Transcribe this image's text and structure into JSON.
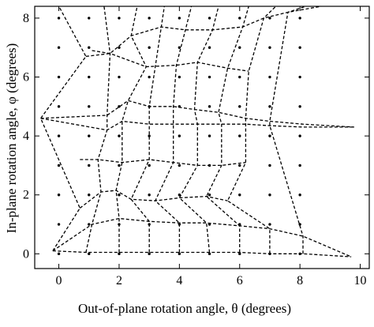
{
  "chart_data": {
    "type": "scatter",
    "xlabel": "Out-of-plane rotation angle, θ (degrees)",
    "ylabel": "In-plane rotation angle, φ (degrees)",
    "xlim": [
      -0.8,
      10.3
    ],
    "ylim": [
      -0.5,
      8.4
    ],
    "x_ticks": [
      0,
      2,
      4,
      6,
      8,
      10
    ],
    "y_ticks": [
      0,
      2,
      4,
      6,
      8
    ],
    "x_tick_labels": [
      "0",
      "2",
      "4",
      "6",
      "8",
      "10"
    ],
    "y_tick_labels": [
      "0",
      "2",
      "4",
      "6",
      "8"
    ],
    "grid": false,
    "series": [
      {
        "kind": "points",
        "x": [
          0,
          1,
          2,
          3,
          4,
          5,
          6,
          7,
          8
        ],
        "y": [
          0,
          1,
          2,
          3,
          4,
          5,
          6,
          7,
          8
        ]
      },
      {
        "kind": "dashed-mesh",
        "rows": [
          [
            [
              -0.2,
              0.1
            ],
            [
              0.9,
              0.05
            ],
            [
              2.0,
              0.05
            ],
            [
              3.0,
              0.05
            ],
            [
              4.0,
              0.05
            ],
            [
              5.0,
              0.05
            ],
            [
              6.0,
              0.05
            ],
            [
              7.0,
              0.0
            ],
            [
              8.1,
              0.0
            ],
            [
              9.7,
              -0.1
            ]
          ],
          [
            [
              -0.2,
              0.1
            ],
            [
              1.1,
              1.0
            ],
            [
              2.0,
              1.2
            ],
            [
              3.0,
              1.1
            ],
            [
              4.0,
              1.05
            ],
            [
              4.9,
              1.05
            ],
            [
              6.0,
              0.95
            ],
            [
              7.0,
              0.85
            ],
            [
              8.1,
              0.6
            ],
            [
              9.7,
              -0.1
            ]
          ],
          [
            [
              0.7,
              1.55
            ],
            [
              1.4,
              2.1
            ],
            [
              1.9,
              2.15
            ],
            [
              2.4,
              1.85
            ],
            [
              3.2,
              1.8
            ],
            [
              4.0,
              1.9
            ],
            [
              4.9,
              1.95
            ],
            [
              5.6,
              1.8
            ]
          ],
          [
            [
              0.7,
              3.2
            ],
            [
              1.3,
              3.2
            ],
            [
              2.1,
              3.1
            ],
            [
              3.0,
              3.2
            ],
            [
              3.8,
              3.1
            ],
            [
              4.6,
              3.0
            ],
            [
              5.4,
              3.0
            ],
            [
              6.2,
              3.1
            ]
          ],
          [
            [
              -0.6,
              4.6
            ],
            [
              1.6,
              4.2
            ],
            [
              2.1,
              4.5
            ],
            [
              3.0,
              4.4
            ],
            [
              3.8,
              4.4
            ],
            [
              4.6,
              4.4
            ],
            [
              5.4,
              4.4
            ],
            [
              6.2,
              4.4
            ],
            [
              7.0,
              4.35
            ],
            [
              8.1,
              4.3
            ],
            [
              9.8,
              4.3
            ]
          ],
          [
            [
              -0.6,
              4.6
            ],
            [
              1.6,
              4.7
            ],
            [
              2.3,
              5.2
            ],
            [
              3.0,
              5.0
            ],
            [
              3.8,
              5.0
            ],
            [
              4.5,
              4.9
            ],
            [
              5.3,
              4.8
            ],
            [
              6.2,
              4.6
            ],
            [
              7.0,
              4.5
            ],
            [
              8.1,
              4.4
            ],
            [
              9.8,
              4.3
            ]
          ],
          [
            [
              1.1,
              6.9
            ],
            [
              1.7,
              6.8
            ],
            [
              2.9,
              6.35
            ],
            [
              3.9,
              6.4
            ],
            [
              4.6,
              6.5
            ],
            [
              5.6,
              6.3
            ],
            [
              6.3,
              6.2
            ]
          ],
          [
            [
              0.9,
              6.7
            ],
            [
              1.7,
              6.8
            ],
            [
              2.4,
              7.4
            ],
            [
              3.4,
              7.7
            ],
            [
              4.2,
              7.6
            ],
            [
              5.1,
              7.6
            ],
            [
              6.1,
              7.7
            ],
            [
              6.8,
              8.0
            ],
            [
              7.6,
              8.2
            ],
            [
              8.7,
              8.4
            ]
          ]
        ],
        "columns": [
          [
            [
              -0.2,
              0.1
            ],
            [
              0.7,
              1.55
            ],
            [
              -0.6,
              4.6
            ],
            [
              0.9,
              6.7
            ],
            [
              0.0,
              8.4
            ]
          ],
          [
            [
              0.9,
              0.05
            ],
            [
              1.1,
              1.0
            ],
            [
              1.4,
              2.1
            ],
            [
              1.3,
              3.2
            ],
            [
              1.6,
              4.2
            ],
            [
              1.6,
              4.7
            ],
            [
              1.7,
              6.8
            ],
            [
              1.6,
              7.6
            ],
            [
              1.5,
              8.4
            ]
          ],
          [
            [
              2.0,
              0.05
            ],
            [
              2.0,
              1.2
            ],
            [
              1.9,
              2.15
            ],
            [
              2.1,
              3.1
            ],
            [
              2.1,
              4.5
            ],
            [
              2.3,
              5.2
            ],
            [
              2.9,
              6.35
            ],
            [
              2.4,
              7.4
            ],
            [
              2.6,
              8.4
            ]
          ],
          [
            [
              3.0,
              0.05
            ],
            [
              3.0,
              1.1
            ],
            [
              2.4,
              1.85
            ],
            [
              3.0,
              3.2
            ],
            [
              3.0,
              4.4
            ],
            [
              3.0,
              5.0
            ],
            [
              3.4,
              7.7
            ],
            [
              3.5,
              8.4
            ]
          ],
          [
            [
              4.0,
              0.05
            ],
            [
              4.0,
              1.05
            ],
            [
              3.2,
              1.8
            ],
            [
              3.8,
              3.1
            ],
            [
              3.8,
              4.4
            ],
            [
              3.8,
              5.0
            ],
            [
              3.9,
              6.4
            ],
            [
              4.2,
              7.6
            ],
            [
              4.4,
              8.4
            ]
          ],
          [
            [
              5.0,
              0.05
            ],
            [
              4.9,
              1.05
            ],
            [
              4.0,
              1.9
            ],
            [
              4.6,
              3.0
            ],
            [
              4.6,
              4.4
            ],
            [
              4.5,
              4.9
            ],
            [
              4.6,
              6.5
            ],
            [
              5.1,
              7.6
            ],
            [
              5.3,
              8.4
            ]
          ],
          [
            [
              6.0,
              0.05
            ],
            [
              6.0,
              0.95
            ],
            [
              4.9,
              1.95
            ],
            [
              5.4,
              3.0
            ],
            [
              5.4,
              4.4
            ],
            [
              5.3,
              4.8
            ],
            [
              5.6,
              6.3
            ],
            [
              6.1,
              7.7
            ],
            [
              6.3,
              8.4
            ]
          ],
          [
            [
              7.0,
              0.0
            ],
            [
              7.0,
              0.85
            ],
            [
              5.6,
              1.8
            ],
            [
              6.2,
              3.1
            ],
            [
              6.2,
              4.4
            ],
            [
              6.2,
              4.6
            ],
            [
              6.3,
              6.2
            ],
            [
              6.8,
              8.0
            ],
            [
              7.2,
              8.4
            ]
          ],
          [
            [
              8.1,
              0.0
            ],
            [
              8.1,
              0.6
            ],
            [
              7.0,
              4.35
            ],
            [
              7.0,
              4.5
            ],
            [
              7.6,
              8.2
            ],
            [
              8.2,
              8.4
            ]
          ]
        ]
      }
    ]
  }
}
